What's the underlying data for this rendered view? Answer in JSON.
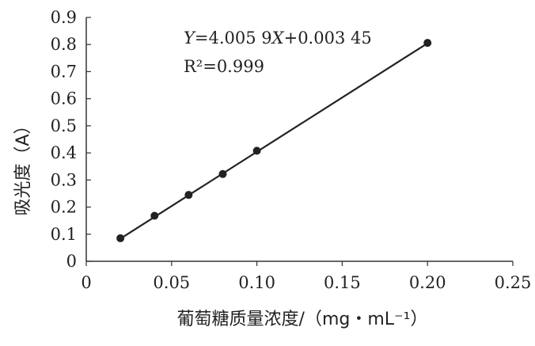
{
  "chart_data": {
    "type": "scatter",
    "xlabel": "葡萄糖质量浓度/（mg・mL⁻¹）",
    "ylabel": "吸光度（A）",
    "xlim": [
      0,
      0.25
    ],
    "ylim": [
      0,
      0.9
    ],
    "x_ticks": [
      "0",
      "0.05",
      "0.10",
      "0.15",
      "0.20",
      "0.25"
    ],
    "y_ticks": [
      "0",
      "0.1",
      "0.2",
      "0.3",
      "0.4",
      "0.5",
      "0.6",
      "0.7",
      "0.8",
      "0.9"
    ],
    "grid": false,
    "legend": "none",
    "series": [
      {
        "x": [
          0.02,
          0.04,
          0.06,
          0.08,
          0.1,
          0.2
        ],
        "y": [
          0.085,
          0.168,
          0.245,
          0.322,
          0.408,
          0.806
        ]
      }
    ],
    "trendline": {
      "slope": 4.0059,
      "intercept": 0.00345,
      "x_range": [
        0.02,
        0.2
      ]
    },
    "annotations": {
      "equation": "Y=4.005 9X+0.003 45",
      "r_squared": "R²=0.999"
    },
    "colors": {
      "line": "#222222",
      "marker": "#222222",
      "axis": "#333333"
    }
  }
}
